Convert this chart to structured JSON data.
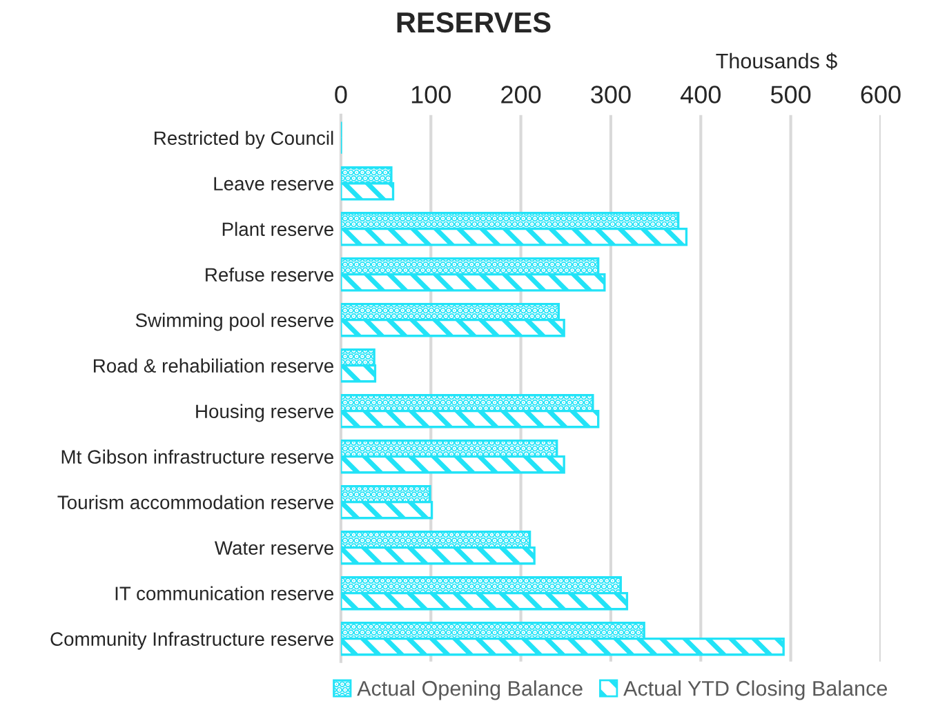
{
  "chart_data": {
    "type": "bar",
    "orientation": "horizontal",
    "title": "RESERVES",
    "xlabel": "Thousands $",
    "categories": [
      "Restricted by Council",
      "Leave reserve",
      "Plant reserve",
      "Refuse reserve",
      "Swimming pool reserve",
      "Road & rehabiliation reserve",
      "Housing reserve",
      "Mt Gibson infrastructure reserve",
      "Tourism accommodation reserve",
      "Water reserve",
      "IT communication reserve",
      "Community Infrastructure reserve"
    ],
    "series": [
      {
        "name": "Actual Opening Balance",
        "color": "#22e3f7",
        "values": [
          0,
          56,
          375,
          286,
          242,
          37,
          280,
          240,
          99,
          210,
          311,
          337
        ]
      },
      {
        "name": "Actual YTD Closing Balance",
        "color": "#22e3f7",
        "values": [
          0,
          58,
          384,
          293,
          248,
          38,
          286,
          248,
          101,
          215,
          318,
          492
        ]
      }
    ],
    "xlim": [
      0,
      600
    ],
    "xticks": [
      0,
      100,
      200,
      300,
      400,
      500,
      600
    ],
    "grid": "x",
    "legend": "bottom"
  }
}
